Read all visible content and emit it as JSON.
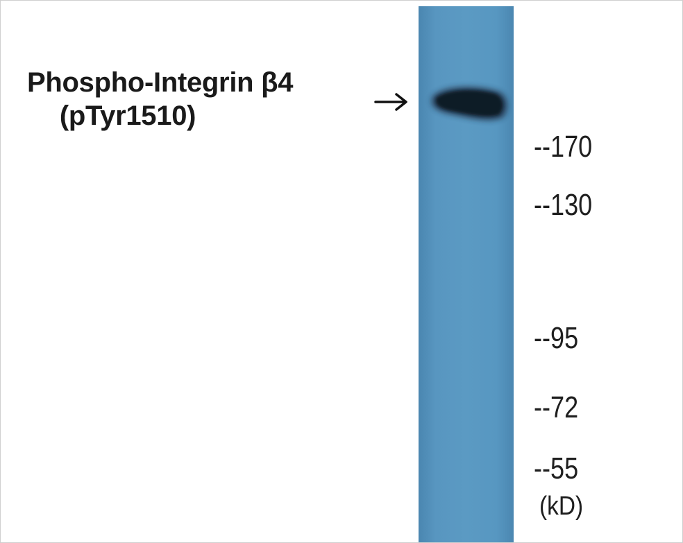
{
  "blot": {
    "protein_line_1": "Phospho-Integrin β4",
    "protein_line_2": "(pTyr1510)",
    "markers": [
      "--170",
      "--130",
      "--95",
      "--72",
      "--55"
    ],
    "unit": "(kD)",
    "colors": {
      "lane": "#5896c0",
      "band": "#0f1e2e",
      "text": "#1f1f1f"
    }
  }
}
